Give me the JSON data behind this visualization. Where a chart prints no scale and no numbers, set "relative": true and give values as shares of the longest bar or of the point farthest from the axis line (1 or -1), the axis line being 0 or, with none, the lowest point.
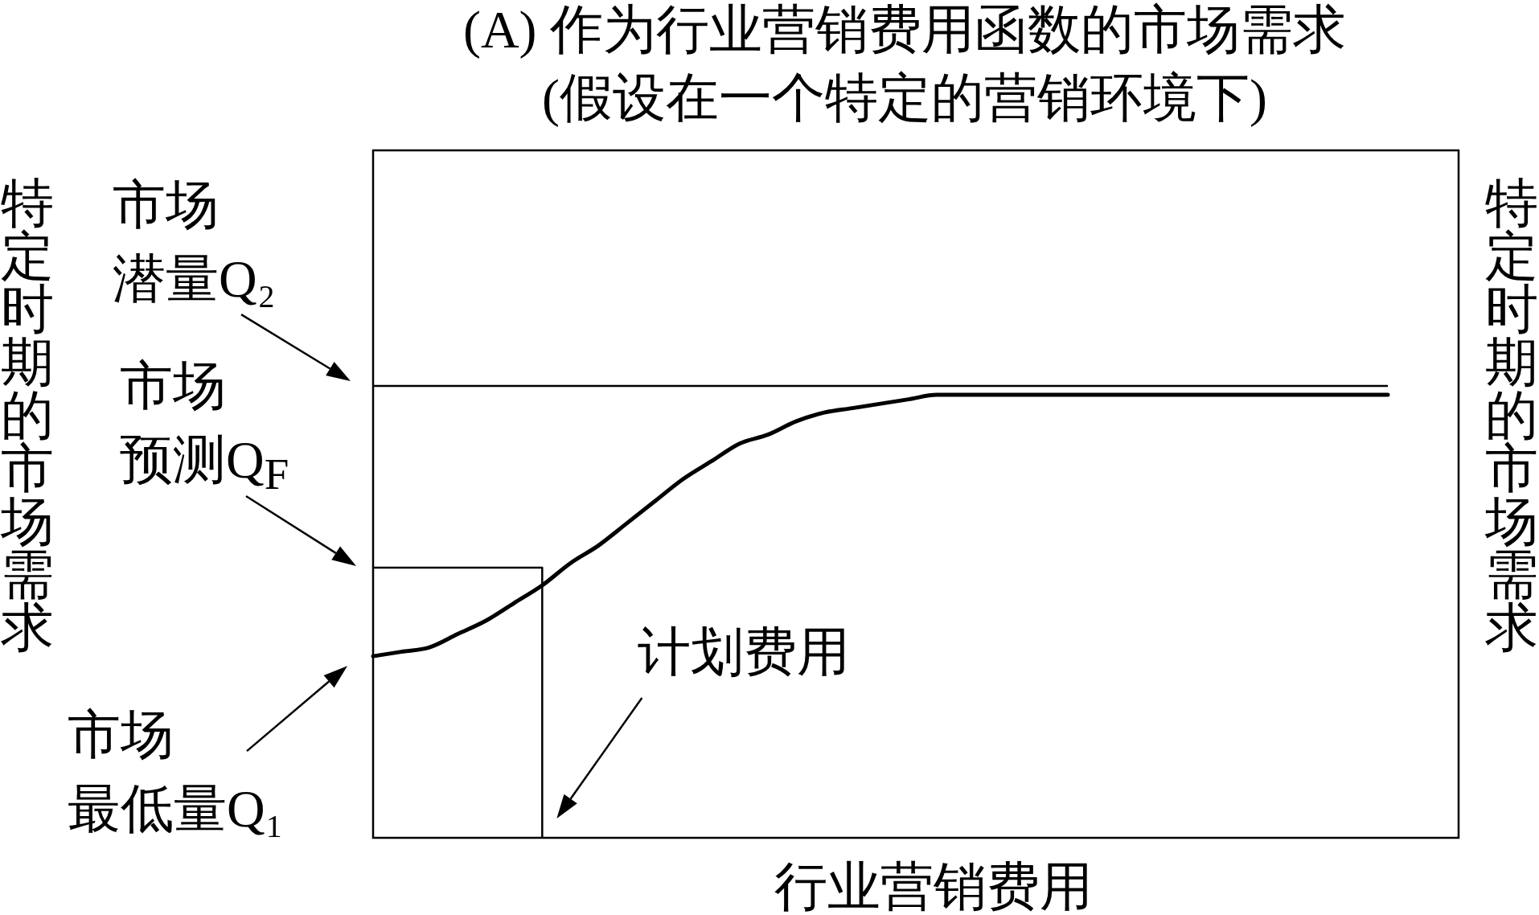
{
  "chart_data": {
    "type": "line",
    "title": "(A) 作为行业营销费用函数的市场需求",
    "subtitle": "(假设在一个特定的营销环境下)",
    "xlabel": "行业营销费用",
    "ylabel": "特定时期的市场需求",
    "y2label": "特定时期的市场需求",
    "relative": true,
    "categories": [
      null,
      null,
      null,
      null,
      null,
      null,
      null,
      null,
      null,
      null,
      null,
      null,
      null,
      null,
      null,
      null,
      null,
      null,
      null,
      null,
      null,
      null,
      null,
      null,
      null,
      null,
      null,
      null,
      null,
      null,
      null,
      null,
      null,
      null,
      null,
      null,
      null
    ],
    "series": [
      {
        "color": "#000000",
        "values": [
          0.41,
          0.42,
          0.43,
          0.46,
          0.49,
          0.53,
          0.57,
          0.62,
          0.66,
          0.71,
          0.76,
          0.81,
          0.85,
          0.89,
          0.91,
          0.94,
          0.96,
          0.97,
          0.98,
          0.99,
          1.0,
          1.0,
          1.0,
          1.0,
          1.0,
          1.0,
          1.0,
          1.0,
          1.0,
          1.0,
          1.0,
          1.0,
          1.0,
          1.0,
          1.0,
          1.0,
          1.0
        ]
      },
      {
        "type": "step",
        "color": "#000000",
        "values": [
          0.61,
          0.61,
          0.61,
          0.61,
          0.61,
          0.61,
          0,
          null,
          null,
          null,
          null,
          null,
          null,
          null,
          null,
          null,
          null,
          null,
          null,
          null,
          null,
          null,
          null,
          null,
          null,
          null,
          null,
          null,
          null,
          null,
          null,
          null,
          null,
          null,
          null,
          null,
          null
        ]
      }
    ],
    "ref_lines": [
      {
        "axis": "y",
        "value": 1.02,
        "label": "市场潜量Q₂"
      }
    ],
    "annotations": [
      "市场预测Q$_{F}$",
      "市场最低量Q₁",
      "计划费用"
    ]
  }
}
